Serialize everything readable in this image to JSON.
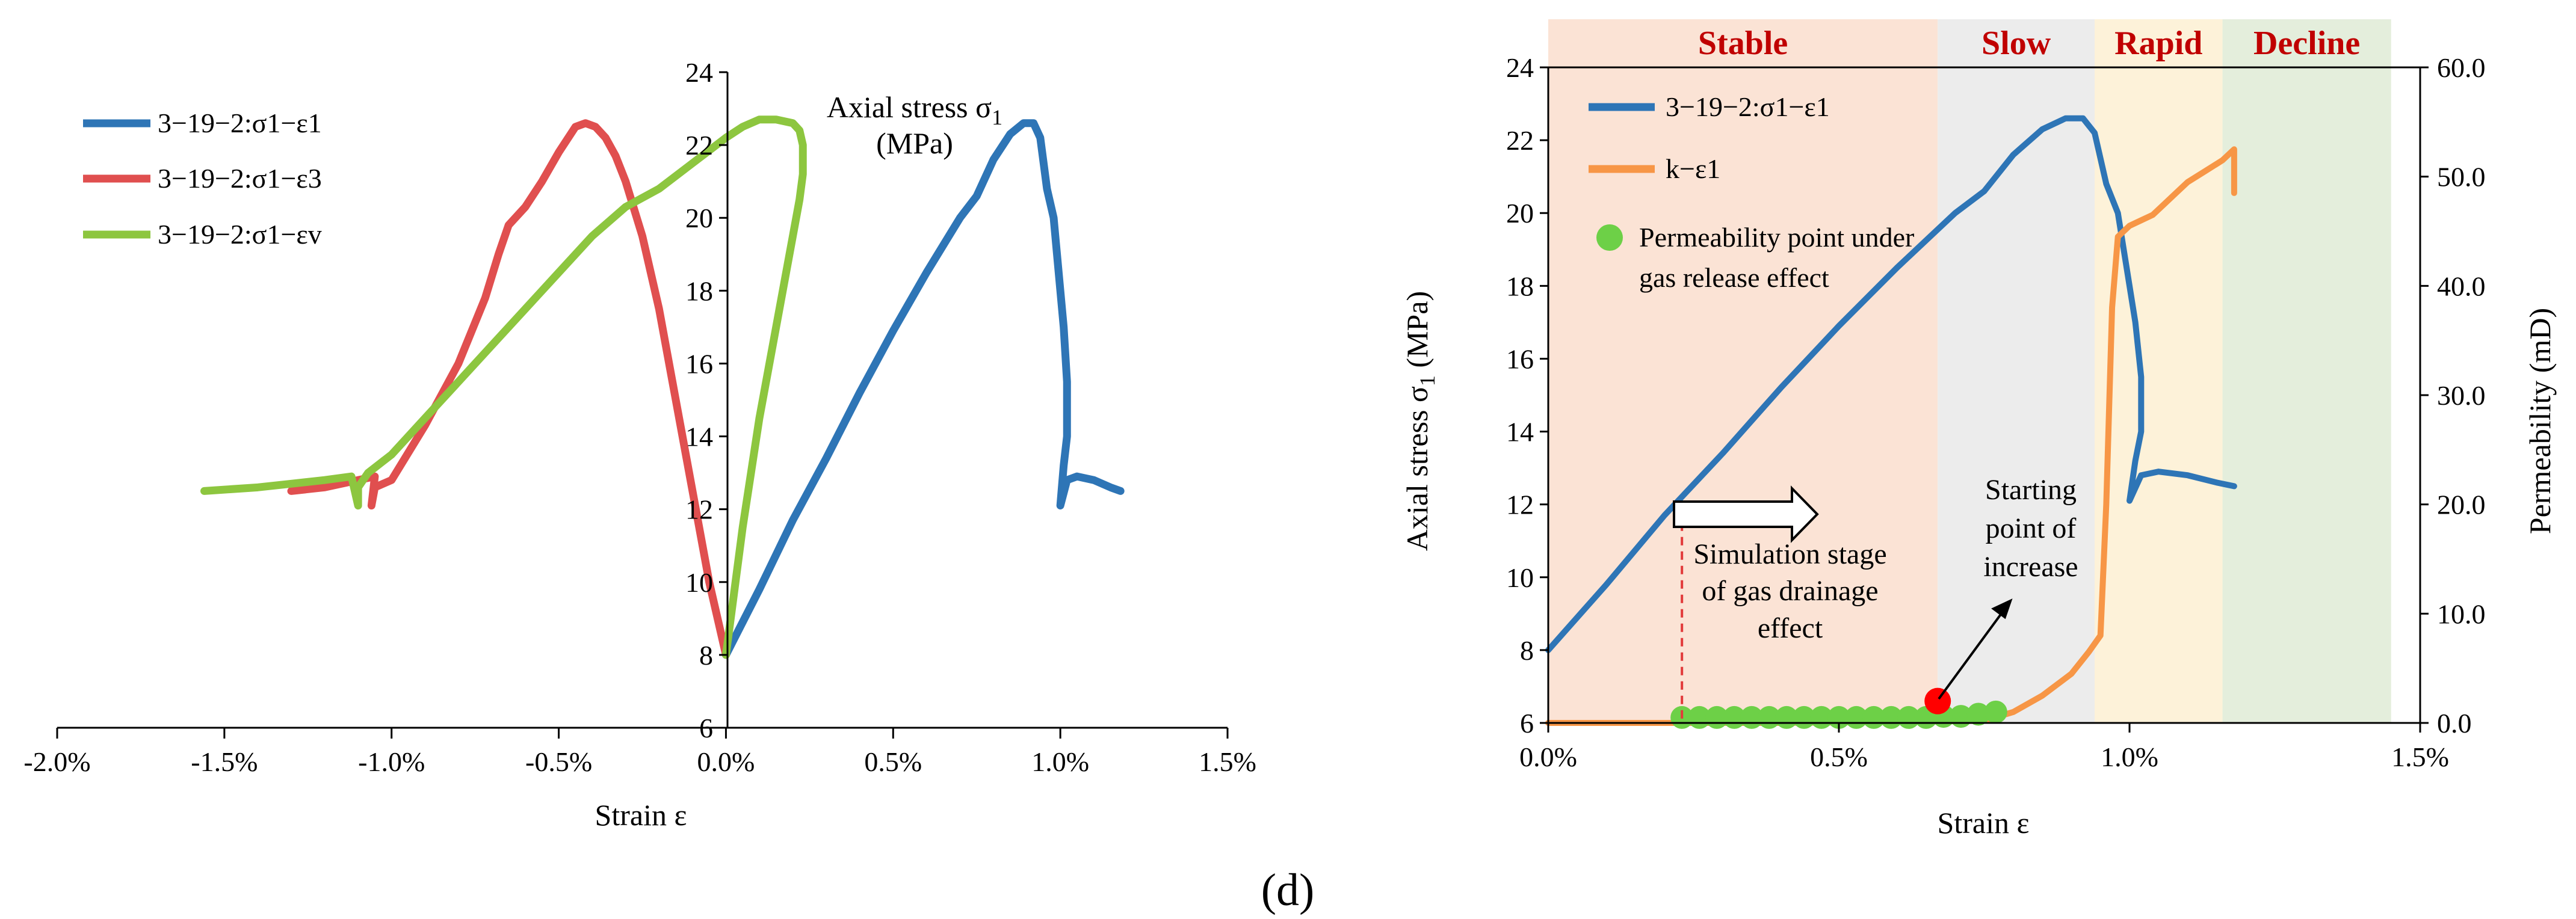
{
  "figure_label": "(d)",
  "chart_data": [
    {
      "type": "line",
      "title": "",
      "xlabel": "Strain ε",
      "ylabel": "Axial stress σ1 (MPa)",
      "xlim": [
        -0.02,
        0.015
      ],
      "ylim": [
        6,
        24
      ],
      "x_ticks": [
        "-2.0%",
        "-1.5%",
        "-1.0%",
        "-0.5%",
        "0.0%",
        "0.5%",
        "1.0%",
        "1.5%"
      ],
      "y_ticks": [
        "6",
        "8",
        "10",
        "12",
        "14",
        "16",
        "18",
        "20",
        "22",
        "24"
      ],
      "axis_title_line1": "Axial stress σ",
      "axis_title_sub": "1",
      "axis_title_line2": "(MPa)",
      "legend_position": "top-left",
      "series": [
        {
          "name": "3−19−2:σ1−ε1",
          "color": "#2e75b6",
          "x": [
            0.0,
            0.001,
            0.002,
            0.003,
            0.004,
            0.005,
            0.006,
            0.007,
            0.0075,
            0.008,
            0.0085,
            0.0089,
            0.0092,
            0.0094,
            0.0095,
            0.0096,
            0.0098,
            0.0099,
            0.01,
            0.0101,
            0.0102,
            0.0102,
            0.0101,
            0.01,
            0.0102,
            0.0105,
            0.011,
            0.0115,
            0.0118
          ],
          "y": [
            8.0,
            9.8,
            11.7,
            13.4,
            15.2,
            16.9,
            18.5,
            20.0,
            20.6,
            21.6,
            22.3,
            22.6,
            22.6,
            22.2,
            21.5,
            20.8,
            20.0,
            19.0,
            18.0,
            17.0,
            15.5,
            14.0,
            13.2,
            12.1,
            12.8,
            12.9,
            12.8,
            12.6,
            12.5
          ]
        },
        {
          "name": "3−19−2:σ1−ε3",
          "color": "#e04f4f",
          "x": [
            0.0,
            -0.0005,
            -0.001,
            -0.0015,
            -0.002,
            -0.0025,
            -0.003,
            -0.0033,
            -0.0036,
            -0.0039,
            -0.0042,
            -0.0045,
            -0.005,
            -0.0055,
            -0.006,
            -0.0065,
            -0.0068,
            -0.0072,
            -0.008,
            -0.009,
            -0.01,
            -0.0105,
            -0.0106,
            -0.0105,
            -0.011,
            -0.012,
            -0.013
          ],
          "y": [
            8.0,
            10.0,
            12.5,
            15.0,
            17.5,
            19.5,
            21.0,
            21.7,
            22.2,
            22.5,
            22.6,
            22.5,
            21.8,
            21.0,
            20.3,
            19.8,
            19.0,
            17.8,
            16.0,
            14.3,
            12.8,
            12.6,
            12.1,
            12.9,
            12.8,
            12.6,
            12.5
          ]
        },
        {
          "name": "3−19−2:σ1−εv",
          "color": "#8dc63f",
          "x": [
            0.0,
            0.0005,
            0.001,
            0.0015,
            0.002,
            0.0022,
            0.0023,
            0.0023,
            0.0022,
            0.002,
            0.0015,
            0.001,
            0.0005,
            0.0,
            -0.001,
            -0.002,
            -0.003,
            -0.004,
            -0.005,
            -0.006,
            -0.007,
            -0.008,
            -0.009,
            -0.01,
            -0.0107,
            -0.011,
            -0.011,
            -0.0112,
            -0.012,
            -0.013,
            -0.014,
            -0.0156
          ],
          "y": [
            8.0,
            11.5,
            14.5,
            17.0,
            19.5,
            20.5,
            21.2,
            22.0,
            22.4,
            22.6,
            22.7,
            22.7,
            22.5,
            22.2,
            21.5,
            20.8,
            20.3,
            19.5,
            18.5,
            17.5,
            16.5,
            15.5,
            14.5,
            13.5,
            13.0,
            12.6,
            12.1,
            12.9,
            12.8,
            12.7,
            12.6,
            12.5
          ]
        }
      ]
    },
    {
      "type": "line",
      "title": "",
      "xlabel": "Strain ε",
      "ylabel": "Axial stress σ1 (MPa)",
      "y2label": "Permeability (mD)",
      "ylabel_main": "Axial stress σ",
      "ylabel_sub": "1",
      "ylabel_unit": " (MPa)",
      "xlim": [
        0.0,
        0.015
      ],
      "ylim": [
        6,
        24
      ],
      "y2lim": [
        0,
        60
      ],
      "x_ticks": [
        "0.0%",
        "0.5%",
        "1.0%",
        "1.5%"
      ],
      "y_ticks": [
        "6",
        "8",
        "10",
        "12",
        "14",
        "16",
        "18",
        "20",
        "22",
        "24"
      ],
      "y2_ticks": [
        "0.0",
        "10.0",
        "20.0",
        "30.0",
        "40.0",
        "50.0",
        "60.0"
      ],
      "legend_position": "top-left",
      "stages": [
        {
          "label": "Stable",
          "x_start": 0.0,
          "x_end": 0.0067,
          "color": "#fbe3d5"
        },
        {
          "label": "Slow",
          "x_start": 0.0067,
          "x_end": 0.0094,
          "color": "#ececec"
        },
        {
          "label": "Rapid",
          "x_start": 0.0094,
          "x_end": 0.0116,
          "color": "#fdf2d9"
        },
        {
          "label": "Decline",
          "x_start": 0.0116,
          "x_end": 0.0145,
          "color": "#e4eedc"
        }
      ],
      "series": [
        {
          "name": "3−19−2:σ1−ε1",
          "color": "#2e75b6",
          "axis": "left",
          "x": [
            0.0,
            0.001,
            0.002,
            0.003,
            0.004,
            0.005,
            0.006,
            0.007,
            0.0075,
            0.008,
            0.0085,
            0.0089,
            0.0092,
            0.0094,
            0.0095,
            0.0096,
            0.0098,
            0.0099,
            0.01,
            0.0101,
            0.0102,
            0.0102,
            0.0101,
            0.01,
            0.0102,
            0.0105,
            0.011,
            0.0115,
            0.0118
          ],
          "y": [
            8.0,
            9.8,
            11.7,
            13.4,
            15.2,
            16.9,
            18.5,
            20.0,
            20.6,
            21.6,
            22.3,
            22.6,
            22.6,
            22.2,
            21.5,
            20.8,
            20.0,
            19.0,
            18.0,
            17.0,
            15.5,
            14.0,
            13.2,
            12.1,
            12.8,
            12.9,
            12.8,
            12.6,
            12.5
          ]
        },
        {
          "name": "k−ε1",
          "color": "#f79646",
          "axis": "right",
          "x": [
            0.0,
            0.002,
            0.004,
            0.006,
            0.0075,
            0.008,
            0.0085,
            0.009,
            0.0093,
            0.0095,
            0.0096,
            0.0097,
            0.0098,
            0.0099,
            0.01,
            0.0102,
            0.0104,
            0.0106,
            0.0108,
            0.011,
            0.0113,
            0.0116,
            0.0118,
            0.0118
          ],
          "y": [
            0.0,
            0.0,
            0.0,
            0.1,
            0.2,
            1.0,
            2.5,
            4.5,
            6.5,
            8.0,
            20.0,
            38.0,
            44.5,
            45.0,
            45.5,
            46.0,
            46.5,
            47.5,
            48.5,
            49.5,
            50.5,
            51.5,
            52.5,
            48.5
          ]
        },
        {
          "name": "Permeability point under gas release effect",
          "legend_line1": "Permeability point under",
          "legend_line2": "gas release effect",
          "color": "#6dd047",
          "axis": "right",
          "type": "scatter",
          "x": [
            0.0023,
            0.0026,
            0.0029,
            0.0032,
            0.0035,
            0.0038,
            0.0041,
            0.0044,
            0.0047,
            0.005,
            0.0053,
            0.0056,
            0.0059,
            0.0062,
            0.0065,
            0.0068,
            0.0071,
            0.0074,
            0.0077
          ],
          "y": [
            0.5,
            0.5,
            0.5,
            0.5,
            0.5,
            0.5,
            0.5,
            0.5,
            0.5,
            0.5,
            0.5,
            0.5,
            0.5,
            0.5,
            0.5,
            0.6,
            0.6,
            0.8,
            1.0
          ]
        }
      ],
      "highlight_point": {
        "x": 0.0067,
        "y": 2.0,
        "color": "#ff0000"
      },
      "annotations": {
        "simulation_line1": "Simulation stage",
        "simulation_line2": "of gas drainage",
        "simulation_line3": "effect",
        "simulation_marker_x": 0.0023,
        "starting_line1": "Starting",
        "starting_line2": "point of",
        "starting_line3": "increase"
      }
    }
  ]
}
